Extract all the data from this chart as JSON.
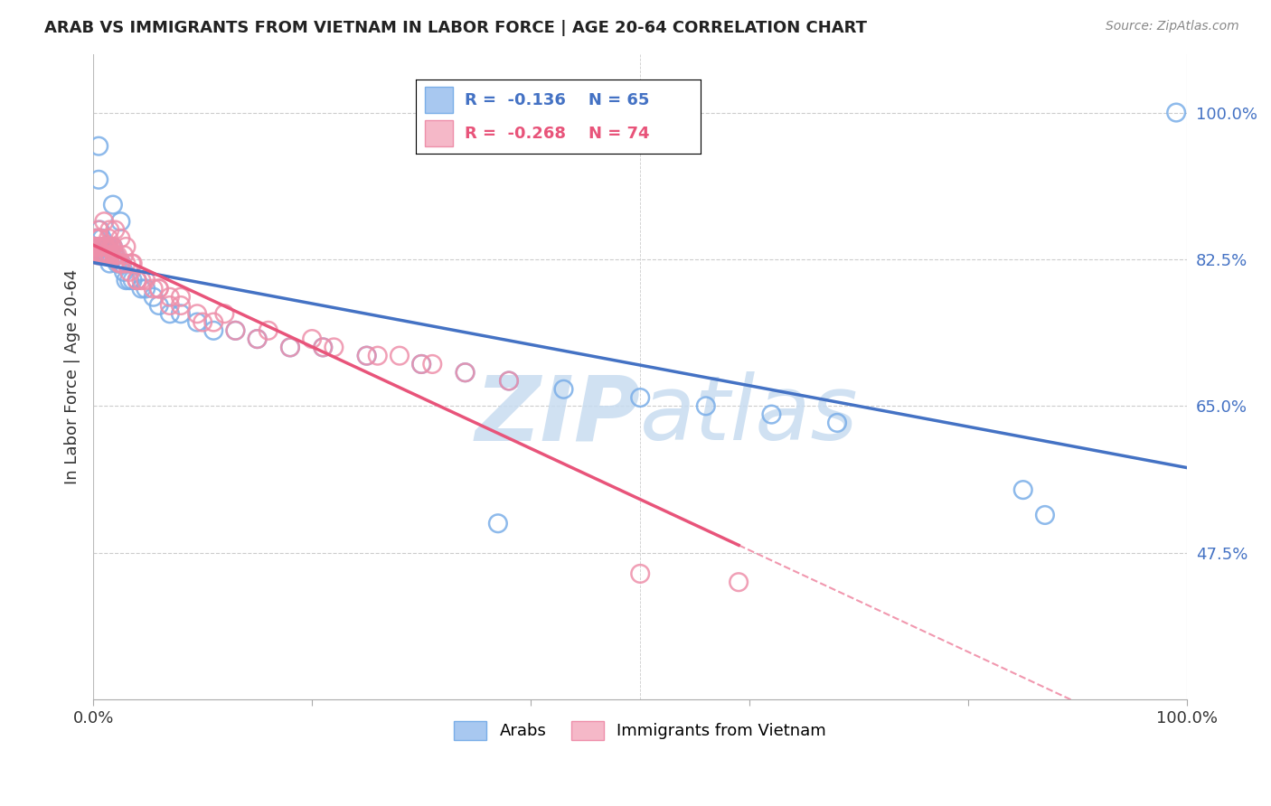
{
  "title": "ARAB VS IMMIGRANTS FROM VIETNAM IN LABOR FORCE | AGE 20-64 CORRELATION CHART",
  "source": "Source: ZipAtlas.com",
  "ylabel": "In Labor Force | Age 20-64",
  "xlim": [
    0.0,
    1.0
  ],
  "ylim": [
    0.3,
    1.07
  ],
  "yticks": [
    0.475,
    0.65,
    0.825,
    1.0
  ],
  "ytick_labels": [
    "47.5%",
    "65.0%",
    "82.5%",
    "100.0%"
  ],
  "legend_r_arab": "-0.136",
  "legend_n_arab": "65",
  "legend_r_viet": "-0.268",
  "legend_n_viet": "74",
  "arab_color": "#A8C8F0",
  "arab_edge_color": "#7AAEE8",
  "arab_line_color": "#4472C4",
  "viet_color": "#F5B8C8",
  "viet_edge_color": "#EE8FAA",
  "viet_line_color": "#E8547A",
  "watermark_color": "#C8DCF0",
  "background_color": "#FFFFFF",
  "grid_color": "#CCCCCC",
  "arab_x": [
    0.002,
    0.003,
    0.004,
    0.005,
    0.005,
    0.006,
    0.006,
    0.007,
    0.007,
    0.008,
    0.008,
    0.009,
    0.009,
    0.01,
    0.01,
    0.011,
    0.011,
    0.012,
    0.012,
    0.013,
    0.013,
    0.014,
    0.015,
    0.015,
    0.016,
    0.017,
    0.018,
    0.019,
    0.02,
    0.022,
    0.024,
    0.026,
    0.028,
    0.03,
    0.033,
    0.036,
    0.04,
    0.044,
    0.048,
    0.055,
    0.06,
    0.07,
    0.08,
    0.095,
    0.11,
    0.13,
    0.15,
    0.18,
    0.21,
    0.25,
    0.3,
    0.34,
    0.38,
    0.43,
    0.5,
    0.56,
    0.62,
    0.68,
    0.85,
    0.87,
    0.005,
    0.018,
    0.025,
    0.37,
    0.99
  ],
  "arab_y": [
    0.84,
    0.85,
    0.83,
    0.96,
    0.84,
    0.83,
    0.86,
    0.84,
    0.83,
    0.83,
    0.85,
    0.84,
    0.83,
    0.84,
    0.83,
    0.83,
    0.84,
    0.84,
    0.83,
    0.83,
    0.84,
    0.84,
    0.83,
    0.82,
    0.83,
    0.84,
    0.84,
    0.83,
    0.83,
    0.82,
    0.82,
    0.82,
    0.81,
    0.8,
    0.8,
    0.8,
    0.8,
    0.79,
    0.79,
    0.78,
    0.77,
    0.76,
    0.76,
    0.75,
    0.74,
    0.74,
    0.73,
    0.72,
    0.72,
    0.71,
    0.7,
    0.69,
    0.68,
    0.67,
    0.66,
    0.65,
    0.64,
    0.63,
    0.55,
    0.52,
    0.92,
    0.89,
    0.87,
    0.51,
    1.0
  ],
  "viet_x": [
    0.002,
    0.003,
    0.004,
    0.005,
    0.005,
    0.006,
    0.006,
    0.007,
    0.007,
    0.008,
    0.008,
    0.009,
    0.009,
    0.01,
    0.01,
    0.011,
    0.011,
    0.012,
    0.012,
    0.013,
    0.013,
    0.014,
    0.015,
    0.015,
    0.016,
    0.017,
    0.018,
    0.019,
    0.02,
    0.022,
    0.024,
    0.026,
    0.028,
    0.03,
    0.033,
    0.036,
    0.04,
    0.044,
    0.048,
    0.055,
    0.06,
    0.07,
    0.08,
    0.095,
    0.11,
    0.13,
    0.15,
    0.18,
    0.21,
    0.25,
    0.3,
    0.34,
    0.38,
    0.005,
    0.01,
    0.015,
    0.02,
    0.025,
    0.03,
    0.035,
    0.04,
    0.07,
    0.1,
    0.2,
    0.28,
    0.06,
    0.08,
    0.12,
    0.16,
    0.22,
    0.26,
    0.31,
    0.5,
    0.59
  ],
  "viet_y": [
    0.85,
    0.84,
    0.83,
    0.84,
    0.85,
    0.83,
    0.85,
    0.84,
    0.83,
    0.84,
    0.83,
    0.84,
    0.83,
    0.84,
    0.83,
    0.83,
    0.84,
    0.84,
    0.83,
    0.83,
    0.84,
    0.85,
    0.83,
    0.84,
    0.83,
    0.84,
    0.84,
    0.83,
    0.83,
    0.83,
    0.82,
    0.82,
    0.83,
    0.82,
    0.81,
    0.82,
    0.8,
    0.8,
    0.8,
    0.79,
    0.79,
    0.78,
    0.77,
    0.76,
    0.75,
    0.74,
    0.73,
    0.72,
    0.72,
    0.71,
    0.7,
    0.69,
    0.68,
    0.86,
    0.87,
    0.86,
    0.86,
    0.85,
    0.84,
    0.82,
    0.8,
    0.77,
    0.75,
    0.73,
    0.71,
    0.79,
    0.78,
    0.76,
    0.74,
    0.72,
    0.71,
    0.7,
    0.45,
    0.44
  ]
}
